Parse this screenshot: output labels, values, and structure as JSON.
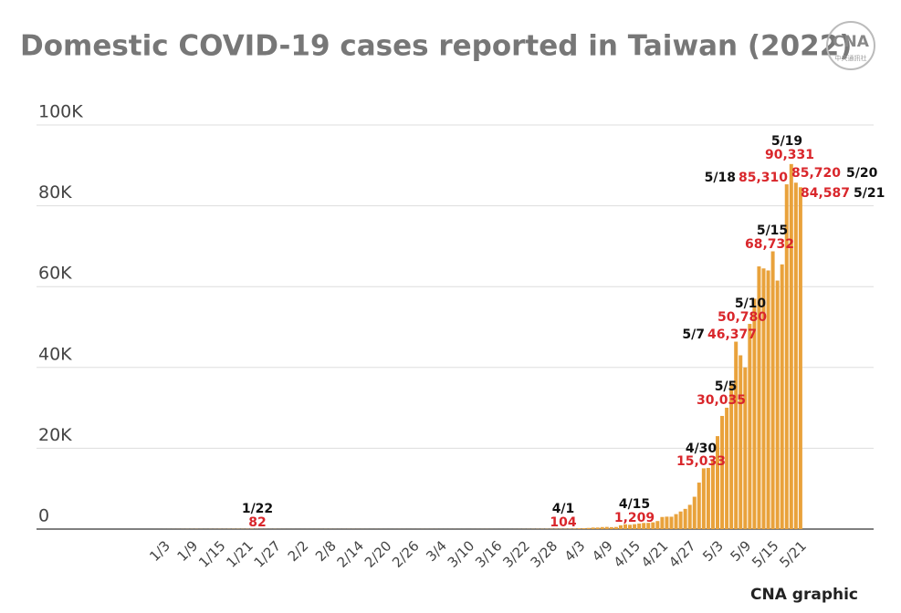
{
  "chart_data": {
    "type": "bar",
    "title": "Domestic COVID-19 cases reported in Taiwan (2022)",
    "logo": "CNA",
    "logo_subtitle": "中央通訊社",
    "credit": "CNA graphic",
    "color": "#e9a23b",
    "grid": true,
    "ylim": [
      0,
      100000
    ],
    "yticks": [
      0,
      {
        "value": 20000,
        "label": "20K"
      },
      {
        "value": 40000,
        "label": "40K"
      },
      {
        "value": 60000,
        "label": "60K"
      },
      {
        "value": 80000,
        "label": "80K"
      },
      {
        "value": 100000,
        "label": "100K"
      }
    ],
    "categories": [
      null,
      null,
      "1/3",
      null,
      null,
      null,
      null,
      null,
      "1/9",
      null,
      null,
      null,
      null,
      null,
      "1/15",
      null,
      null,
      null,
      null,
      null,
      "1/21",
      null,
      null,
      null,
      null,
      null,
      "1/27",
      null,
      null,
      null,
      null,
      null,
      "2/2",
      null,
      null,
      null,
      null,
      null,
      "2/8",
      null,
      null,
      null,
      null,
      null,
      "2/14",
      null,
      null,
      null,
      null,
      null,
      "2/20",
      null,
      null,
      null,
      null,
      null,
      "2/26",
      null,
      null,
      null,
      null,
      null,
      "3/4",
      null,
      null,
      null,
      null,
      null,
      "3/10",
      null,
      null,
      null,
      null,
      null,
      "3/16",
      null,
      null,
      null,
      null,
      null,
      "3/22",
      null,
      null,
      null,
      null,
      null,
      "3/28",
      null,
      null,
      null,
      null,
      null,
      "4/3",
      null,
      null,
      null,
      null,
      null,
      "4/9",
      null,
      null,
      null,
      null,
      null,
      "4/15",
      null,
      null,
      null,
      null,
      null,
      "4/21",
      null,
      null,
      null,
      null,
      null,
      "4/27",
      null,
      null,
      null,
      null,
      null,
      "5/3",
      null,
      null,
      null,
      null,
      null,
      "5/9",
      null,
      null,
      null,
      null,
      null,
      "5/15",
      null,
      null,
      null,
      null,
      null,
      "5/21"
    ],
    "values": [
      3,
      5,
      8,
      12,
      14,
      17,
      20,
      25,
      31,
      40,
      29,
      24,
      33,
      35,
      46,
      40,
      49,
      55,
      61,
      52,
      59,
      82,
      48,
      35,
      27,
      24,
      31,
      22,
      18,
      15,
      12,
      10,
      9,
      12,
      14,
      18,
      21,
      25,
      23,
      19,
      16,
      18,
      22,
      20,
      17,
      14,
      12,
      11,
      15,
      13,
      10,
      9,
      12,
      14,
      11,
      8,
      10,
      12,
      15,
      12,
      16,
      14,
      10,
      8,
      11,
      13,
      9,
      7,
      6,
      10,
      12,
      15,
      18,
      14,
      11,
      9,
      8,
      12,
      16,
      21,
      25,
      30,
      36,
      44,
      52,
      61,
      70,
      78,
      85,
      92,
      104,
      141,
      207,
      213,
      281,
      380,
      382,
      500,
      538,
      478,
      519,
      944,
      1194,
      1066,
      1209,
      1371,
      1513,
      1536,
      1661,
      1986,
      2990,
      3076,
      3060,
      3700,
      4350,
      5000,
      6000,
      8000,
      11500,
      15033,
      15136,
      17000,
      23000,
      28000,
      30035,
      36000,
      46377,
      43000,
      40000,
      50780,
      57000,
      65000,
      64500,
      64000,
      68732,
      61500,
      65500,
      85310,
      90331,
      85720,
      84587
    ],
    "value_labels": [
      null,
      null,
      null,
      null,
      null,
      null,
      null,
      null,
      null,
      null,
      null,
      null,
      null,
      null,
      null,
      null,
      null,
      null,
      null,
      null,
      null,
      "82",
      null,
      null,
      null,
      null,
      null,
      null,
      null,
      null,
      null,
      null,
      null,
      null,
      null,
      null,
      null,
      null,
      null,
      null,
      null,
      null,
      null,
      null,
      null,
      null,
      null,
      null,
      null,
      null,
      null,
      null,
      null,
      null,
      null,
      null,
      null,
      null,
      null,
      null,
      null,
      null,
      null,
      null,
      null,
      null,
      null,
      null,
      null,
      null,
      null,
      null,
      null,
      null,
      null,
      null,
      null,
      null,
      null,
      null,
      null,
      null,
      null,
      null,
      null,
      null,
      null,
      null,
      null,
      null,
      "104",
      null,
      null,
      null,
      null,
      null,
      null,
      null,
      null,
      null,
      null,
      null,
      null,
      null,
      "1,209",
      null,
      null,
      null,
      null,
      null,
      null,
      null,
      null,
      null,
      null,
      null,
      null,
      null,
      null,
      "15,033",
      null,
      null,
      null,
      null,
      "30,035",
      null,
      "46,377",
      null,
      null,
      "50,780",
      null,
      null,
      null,
      null,
      "68,732",
      null,
      null,
      "85,310",
      "90,331",
      "85,720",
      "84,587"
    ],
    "label_dates": [
      null,
      null,
      null,
      null,
      null,
      null,
      null,
      null,
      null,
      null,
      null,
      null,
      null,
      null,
      null,
      null,
      null,
      null,
      null,
      null,
      null,
      "1/22",
      null,
      null,
      null,
      null,
      null,
      null,
      null,
      null,
      null,
      null,
      null,
      null,
      null,
      null,
      null,
      null,
      null,
      null,
      null,
      null,
      null,
      null,
      null,
      null,
      null,
      null,
      null,
      null,
      null,
      null,
      null,
      null,
      null,
      null,
      null,
      null,
      null,
      null,
      null,
      null,
      null,
      null,
      null,
      null,
      null,
      null,
      null,
      null,
      null,
      null,
      null,
      null,
      null,
      null,
      null,
      null,
      null,
      null,
      null,
      null,
      null,
      null,
      null,
      null,
      null,
      null,
      null,
      null,
      "4/1",
      null,
      null,
      null,
      null,
      null,
      null,
      null,
      null,
      null,
      null,
      null,
      null,
      null,
      "4/15",
      null,
      null,
      null,
      null,
      null,
      null,
      null,
      null,
      null,
      null,
      null,
      null,
      null,
      null,
      "4/30",
      null,
      null,
      null,
      null,
      "5/5",
      null,
      "5/7",
      null,
      null,
      "5/10",
      null,
      null,
      null,
      null,
      "5/15",
      null,
      null,
      "5/18",
      "5/19",
      "5/20",
      "5/21"
    ]
  }
}
